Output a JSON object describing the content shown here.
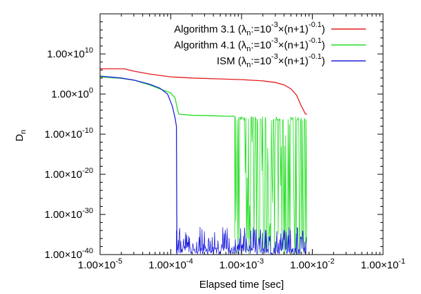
{
  "chart_data": {
    "type": "line",
    "title": "",
    "xlabel": "Elapsed time [sec]",
    "ylabel": "Dn",
    "ylabel_main": "D",
    "ylabel_sub": "n",
    "xscale": "log",
    "yscale": "log",
    "xlim": [
      1e-05,
      0.1
    ],
    "ylim": [
      1e-40,
      1e+20
    ],
    "grid": false,
    "legend_position": "top-right",
    "x_ticks": [
      {
        "value": 1e-05,
        "mantissa": "1.00×10",
        "exp": "-5"
      },
      {
        "value": 0.0001,
        "mantissa": "1.00×10",
        "exp": "-4"
      },
      {
        "value": 0.001,
        "mantissa": "1.00×10",
        "exp": "-3"
      },
      {
        "value": 0.01,
        "mantissa": "1.00×10",
        "exp": "-2"
      },
      {
        "value": 0.1,
        "mantissa": "1.00×10",
        "exp": "-1"
      }
    ],
    "y_ticks": [
      {
        "value": 10000000000.0,
        "mantissa": "1.00×10",
        "exp": "10"
      },
      {
        "value": 1.0,
        "mantissa": "1.00×10",
        "exp": "0"
      },
      {
        "value": 1e-10,
        "mantissa": "1.00×10",
        "exp": "-10"
      },
      {
        "value": 1e-20,
        "mantissa": "1.00×10",
        "exp": "-20"
      },
      {
        "value": 1e-30,
        "mantissa": "1.00×10",
        "exp": "-30"
      },
      {
        "value": 1e-40,
        "mantissa": "1.00×10",
        "exp": "-40"
      }
    ],
    "series": [
      {
        "name": "Algorithm 3.1 (λn:=10-3×(n+1)-0.1)",
        "legend": {
          "algo": "Algorithm 3.1 (λ",
          "s1": "n",
          "t1": ":=10",
          "p1": "-3",
          "t2": "×(n+1)",
          "p2": "-0.1",
          "t3": ")"
        },
        "color": "#e41a1c",
        "x": [
          1e-05,
          1.5e-05,
          2.2e-05,
          3e-05,
          5e-05,
          0.0001,
          0.0002,
          0.0005,
          0.001,
          0.002,
          0.003,
          0.004,
          0.005,
          0.006,
          0.007,
          0.0075,
          0.008,
          0.0084
        ],
        "y": [
          2000000.0,
          2000000.0,
          2000000.0,
          500000.0,
          100000.0,
          20000.0,
          10000.0,
          6000.0,
          4000.0,
          2000.0,
          800.0,
          200.0,
          20,
          0.5,
          0.001,
          0.0001,
          1e-05,
          1e-05
        ]
      },
      {
        "name": "Algorithm 4.1 (λn:=10-3×(n+1)-0.1)",
        "legend": {
          "algo": "Algorithm 4.1 (λ",
          "s1": "n",
          "t1": ":=10",
          "p1": "-3",
          "t2": "×(n+1)",
          "p2": "-0.1",
          "t3": ")"
        },
        "color": "#22dd22",
        "x": [
          1e-05,
          2e-05,
          3e-05,
          5e-05,
          7e-05,
          0.0001,
          0.000115,
          0.000125,
          0.00013,
          0.0002,
          0.0004,
          0.0006,
          0.0008
        ],
        "y": [
          20000.0,
          8000.0,
          3000.0,
          200.0,
          20,
          2,
          0.1,
          0.0001,
          1e-05,
          5e-06,
          4e-06,
          3e-06,
          3e-06
        ],
        "noise_region": {
          "x_start": 0.0008,
          "x_end": 0.0084,
          "high": 3e-06,
          "low": 1e-40
        }
      },
      {
        "name": "ISM (λn:=10-3×(n+1)-0.1)",
        "legend": {
          "algo": "ISM (λ",
          "s1": "n",
          "t1": ":=10",
          "p1": "-3",
          "t2": "×(n+1)",
          "p2": "-0.1",
          "t3": ")"
        },
        "color": "#1f1fdd",
        "x": [
          1e-05,
          2e-05,
          3e-05,
          5e-05,
          7e-05,
          9e-05,
          0.000105,
          0.000115,
          0.00012,
          0.000122
        ],
        "y": [
          30000.0,
          10000.0,
          3000.0,
          300.0,
          30,
          1,
          0.001,
          1e-06,
          1e-08,
          1e-40
        ],
        "noise_region": {
          "x_start": 0.00012,
          "x_end": 0.0084,
          "high": 1e-34,
          "low": 1e-40
        }
      }
    ]
  }
}
